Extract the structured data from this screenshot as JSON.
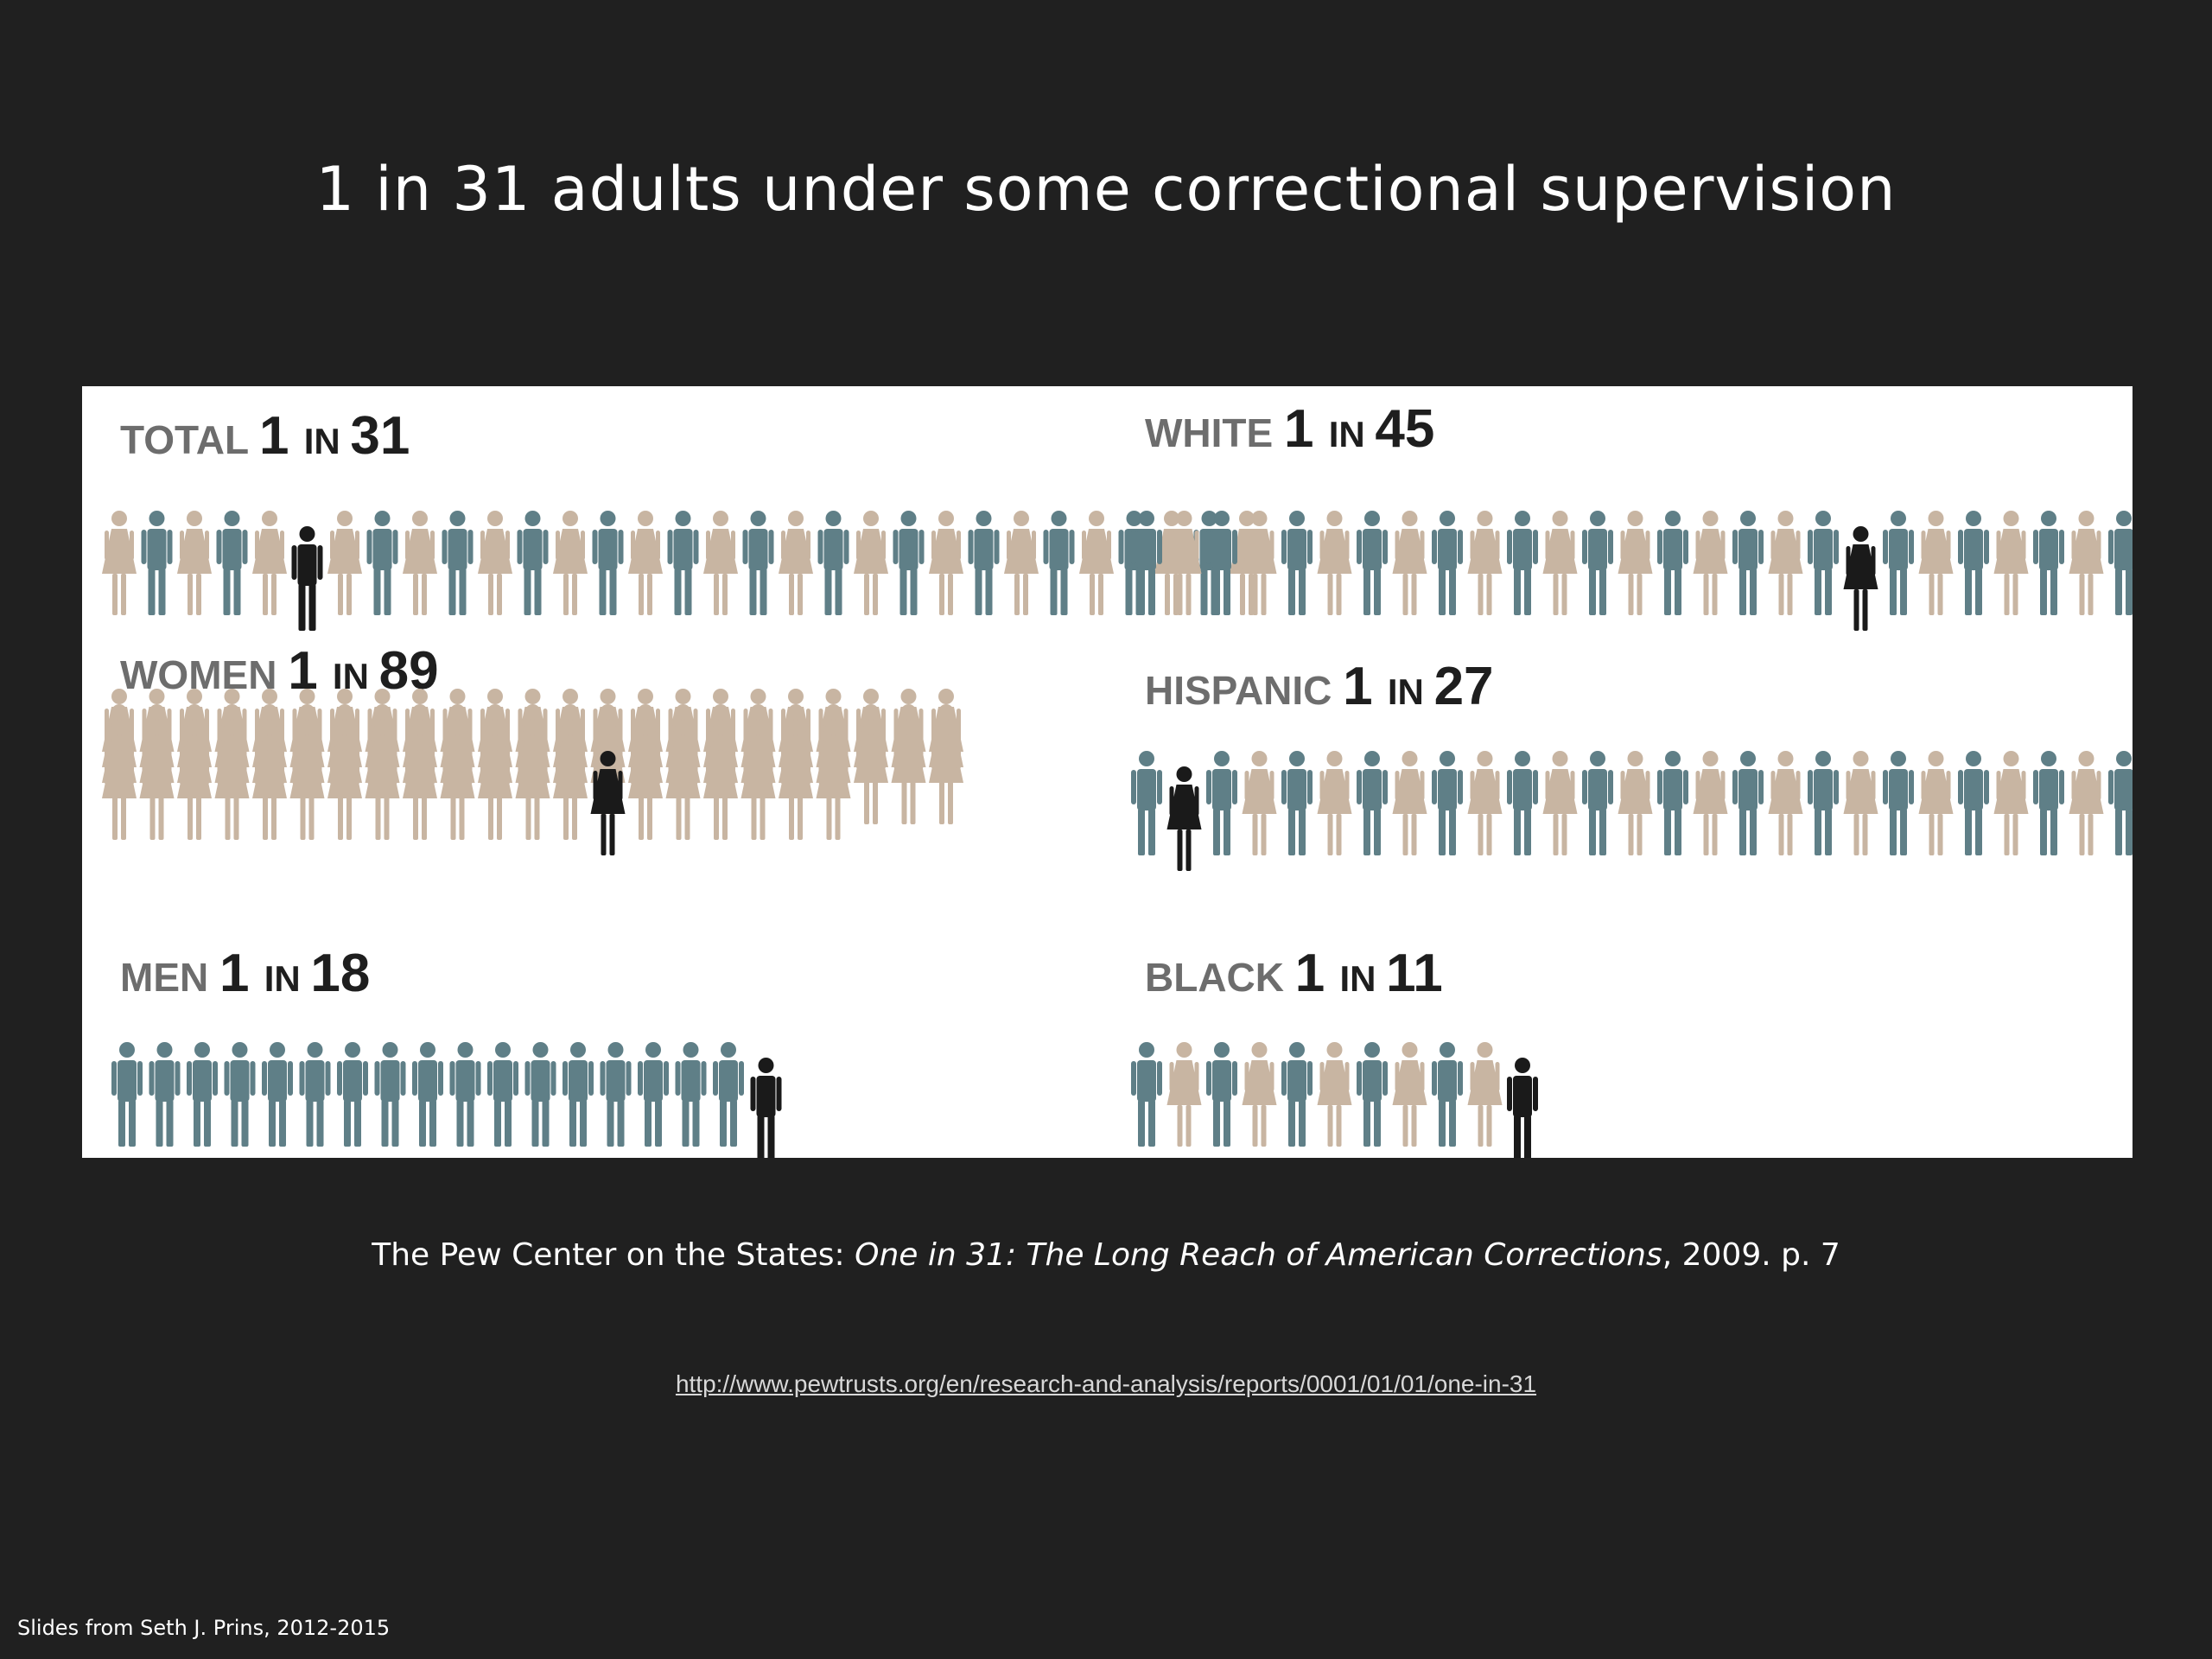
{
  "slide": {
    "title": "1 in 31 adults under some correctional supervision",
    "citation_plain": "The Pew Center on the States: ",
    "citation_italic": "One in 31: The Long Reach of American Corrections",
    "citation_tail": ", 2009. p. 7",
    "source_url": "http://www.pewtrusts.org/en/research-and-analysis/reports/0001/01/01/one-in-31",
    "credit": "Slides from Seth J. Prins, 2012-2015"
  },
  "colors": {
    "background": "#202020",
    "label_gray": "#6d6d6d",
    "label_dark": "#1e1e1e",
    "male_figure": "#5f7f87",
    "female_figure": "#c8b5a2",
    "highlight_figure": "#1a1a1a"
  },
  "chart_data": {
    "type": "pictograph",
    "title": "",
    "unit": "adults",
    "series": [
      {
        "name": "TOTAL",
        "one_in": 31,
        "count_label": "1",
        "in_label": "IN",
        "ratio_label": "31",
        "figure_mix": "alternating",
        "column": "left"
      },
      {
        "name": "WOMEN",
        "one_in": 89,
        "count_label": "1",
        "in_label": "IN",
        "ratio_label": "89",
        "figure_mix": "female",
        "column": "left"
      },
      {
        "name": "MEN",
        "one_in": 18,
        "count_label": "1",
        "in_label": "IN",
        "ratio_label": "18",
        "figure_mix": "male",
        "column": "left"
      },
      {
        "name": "WHITE",
        "one_in": 45,
        "count_label": "1",
        "in_label": "IN",
        "ratio_label": "45",
        "figure_mix": "alternating",
        "column": "right"
      },
      {
        "name": "HISPANIC",
        "one_in": 27,
        "count_label": "1",
        "in_label": "IN",
        "ratio_label": "27",
        "figure_mix": "alternating",
        "column": "right"
      },
      {
        "name": "BLACK",
        "one_in": 11,
        "count_label": "1",
        "in_label": "IN",
        "ratio_label": "11",
        "figure_mix": "alternating",
        "column": "right"
      }
    ]
  }
}
